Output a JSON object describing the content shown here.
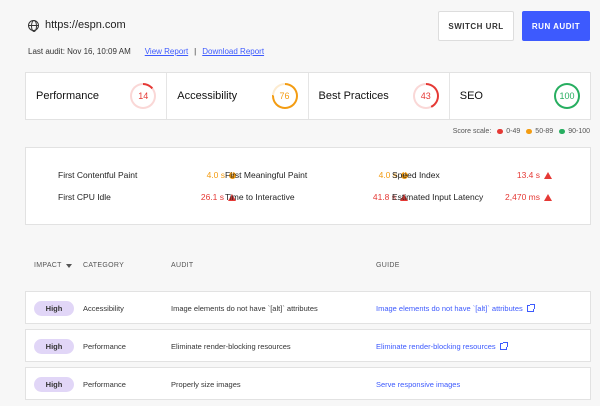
{
  "header": {
    "url": "https://espn.com",
    "switch_label": "SWITCH URL",
    "run_label": "RUN AUDIT"
  },
  "last_audit": {
    "text": "Last audit: Nov 16, 10:09 AM",
    "view_report": "View Report",
    "separator": "|",
    "download_report": "Download Report"
  },
  "scores": [
    {
      "label": "Performance",
      "value": "14",
      "color": "#e53935"
    },
    {
      "label": "Accessibility",
      "value": "76",
      "color": "#f39c12"
    },
    {
      "label": "Best Practices",
      "value": "43",
      "color": "#e53935"
    },
    {
      "label": "SEO",
      "value": "100",
      "color": "#27ae60"
    }
  ],
  "score_scale": {
    "label": "Score scale:",
    "ranges": [
      {
        "text": "0-49",
        "color": "#e53935"
      },
      {
        "text": "50-89",
        "color": "#f39c12"
      },
      {
        "text": "90-100",
        "color": "#27ae60"
      }
    ]
  },
  "metrics": [
    {
      "label": "First Contentful Paint",
      "value": "4.0 s",
      "status": "warn"
    },
    {
      "label": "First Meaningful Paint",
      "value": "4.0 s",
      "status": "warn"
    },
    {
      "label": "Speed Index",
      "value": "13.4 s",
      "status": "fail"
    },
    {
      "label": "First CPU Idle",
      "value": "26.1 s",
      "status": "fail"
    },
    {
      "label": "Time to Interactive",
      "value": "41.8 s",
      "status": "fail"
    },
    {
      "label": "Estimated Input Latency",
      "value": "2,470 ms",
      "status": "fail"
    }
  ],
  "table": {
    "headers": {
      "impact": "IMPACT",
      "category": "CATEGORY",
      "audit": "AUDIT",
      "guide": "GUIDE"
    },
    "rows": [
      {
        "impact": "High",
        "category": "Accessibility",
        "audit": "Image elements do not have `[alt]` attributes",
        "guide": "Image elements do not have `[alt]` attributes",
        "external": true
      },
      {
        "impact": "High",
        "category": "Performance",
        "audit": "Eliminate render-blocking resources",
        "guide": "Eliminate render-blocking resources",
        "external": true
      },
      {
        "impact": "High",
        "category": "Performance",
        "audit": "Properly size images",
        "guide": "Serve responsive images",
        "external": false
      }
    ]
  }
}
